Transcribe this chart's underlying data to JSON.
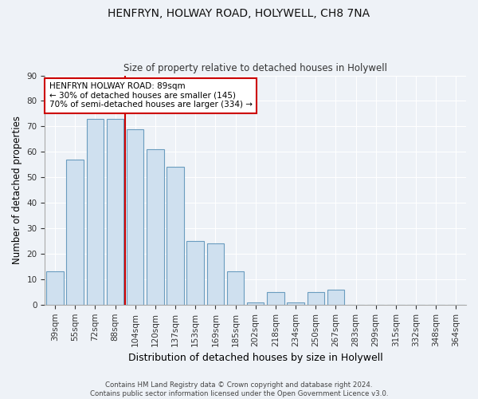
{
  "title1": "HENFRYN, HOLWAY ROAD, HOLYWELL, CH8 7NA",
  "title2": "Size of property relative to detached houses in Holywell",
  "xlabel": "Distribution of detached houses by size in Holywell",
  "ylabel": "Number of detached properties",
  "bar_labels": [
    "39sqm",
    "55sqm",
    "72sqm",
    "88sqm",
    "104sqm",
    "120sqm",
    "137sqm",
    "153sqm",
    "169sqm",
    "185sqm",
    "202sqm",
    "218sqm",
    "234sqm",
    "250sqm",
    "267sqm",
    "283sqm",
    "299sqm",
    "315sqm",
    "332sqm",
    "348sqm",
    "364sqm"
  ],
  "bar_values": [
    13,
    57,
    73,
    73,
    69,
    61,
    54,
    25,
    24,
    13,
    1,
    5,
    1,
    5,
    6,
    0,
    0,
    0,
    0,
    0,
    0
  ],
  "bar_color": "#cfe0ef",
  "bar_edge_color": "#6a9cbf",
  "annotation_text": "HENFRYN HOLWAY ROAD: 89sqm\n← 30% of detached houses are smaller (145)\n70% of semi-detached houses are larger (334) →",
  "annotation_box_color": "#ffffff",
  "annotation_box_edge_color": "#cc0000",
  "ylim": [
    0,
    90
  ],
  "yticks": [
    0,
    10,
    20,
    30,
    40,
    50,
    60,
    70,
    80,
    90
  ],
  "footer": "Contains HM Land Registry data © Crown copyright and database right 2024.\nContains public sector information licensed under the Open Government Licence v3.0.",
  "bg_color": "#eef2f7"
}
